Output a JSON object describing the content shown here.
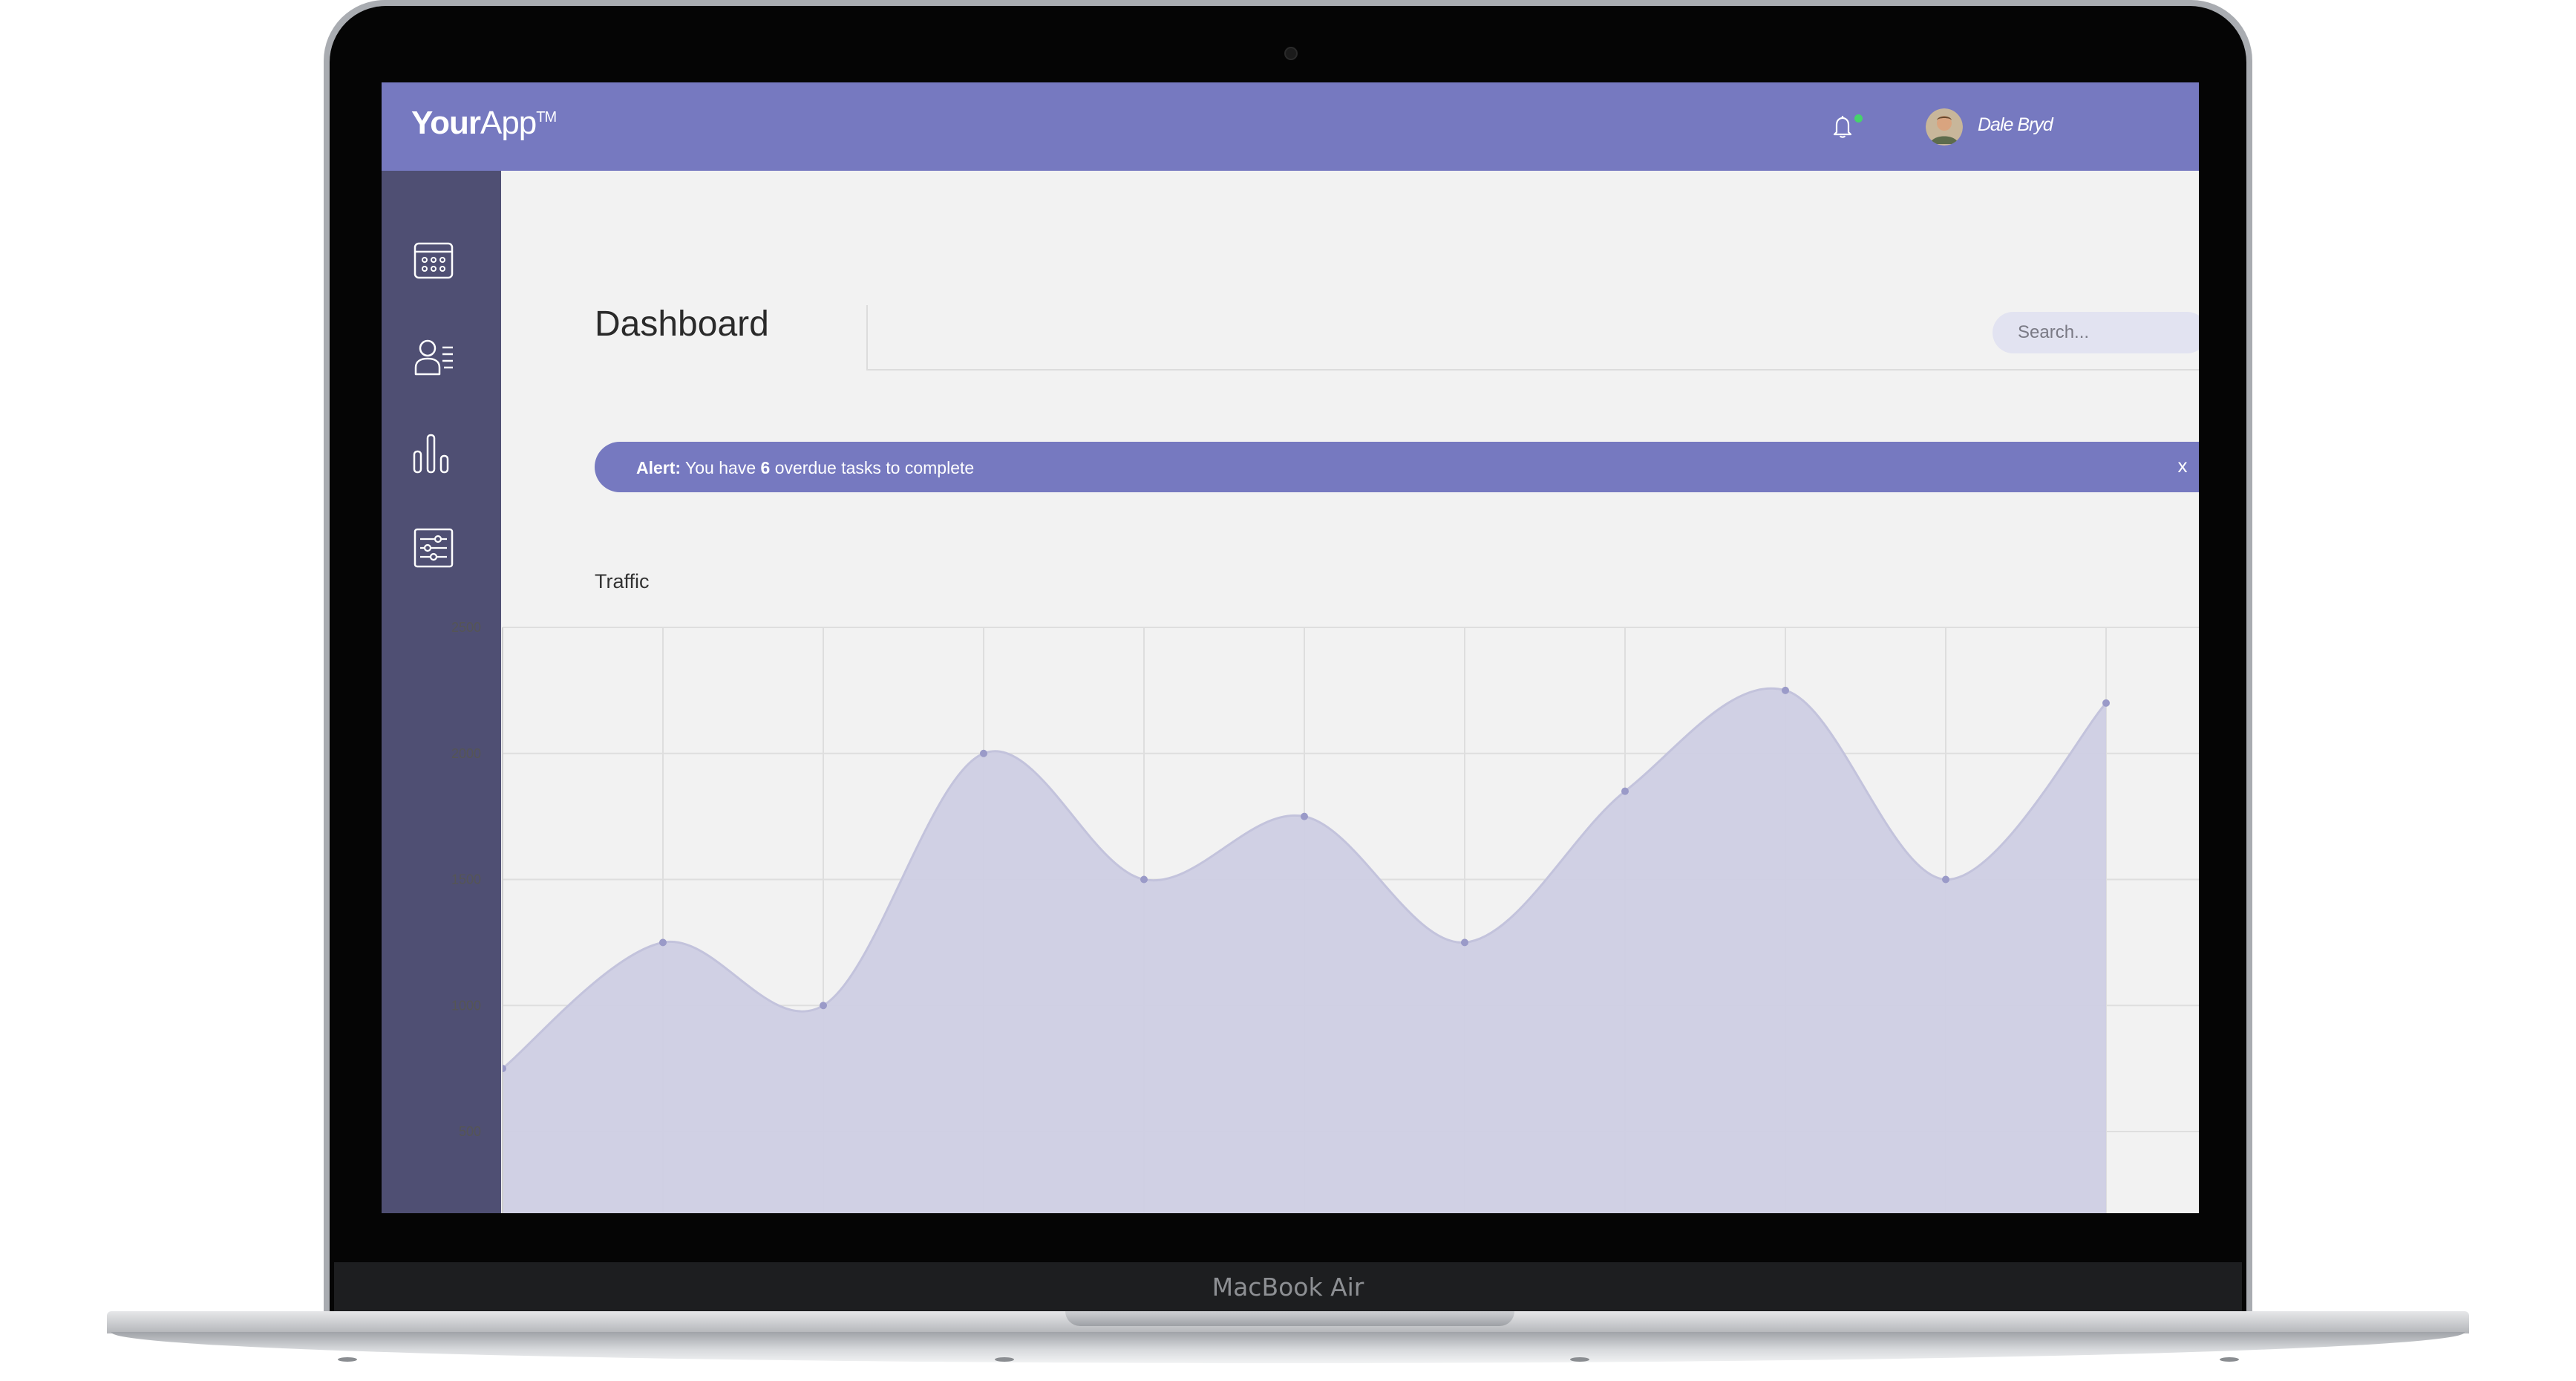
{
  "device": {
    "model_label": "MacBook Air"
  },
  "app": {
    "logo_bold": "Your",
    "logo_light": "App",
    "logo_tm": "TM",
    "notification_icon": "bell-icon",
    "notification_dot_color": "#45d36b",
    "user_name": "Dale Bryd",
    "accent_color": "#7679c0",
    "sidebar_color": "#4f4f73"
  },
  "sidebar": {
    "items": [
      {
        "icon": "calendar-icon"
      },
      {
        "icon": "user-list-icon"
      },
      {
        "icon": "bar-chart-icon"
      },
      {
        "icon": "settings-sliders-icon"
      }
    ]
  },
  "page": {
    "title": "Dashboard"
  },
  "search": {
    "placeholder": "Search..."
  },
  "alert": {
    "label": "Alert:",
    "text_before": " You have ",
    "count": "6",
    "text_after": " overdue tasks to complete",
    "close": "x"
  },
  "chart_data": {
    "type": "area",
    "title": "Traffic",
    "xlabel": "",
    "ylabel": "",
    "ylim": [
      250,
      2500
    ],
    "yticks": [
      500,
      1000,
      1500,
      2000,
      2500
    ],
    "grid": true,
    "fill_color": "#cdcde3",
    "line_color": "#c3c3dc",
    "point_color": "#9a9ac8",
    "series": [
      {
        "values": [
          750,
          1250,
          1000,
          2000,
          1500,
          1750,
          1250,
          1850,
          2250,
          1500,
          2200
        ]
      }
    ]
  }
}
